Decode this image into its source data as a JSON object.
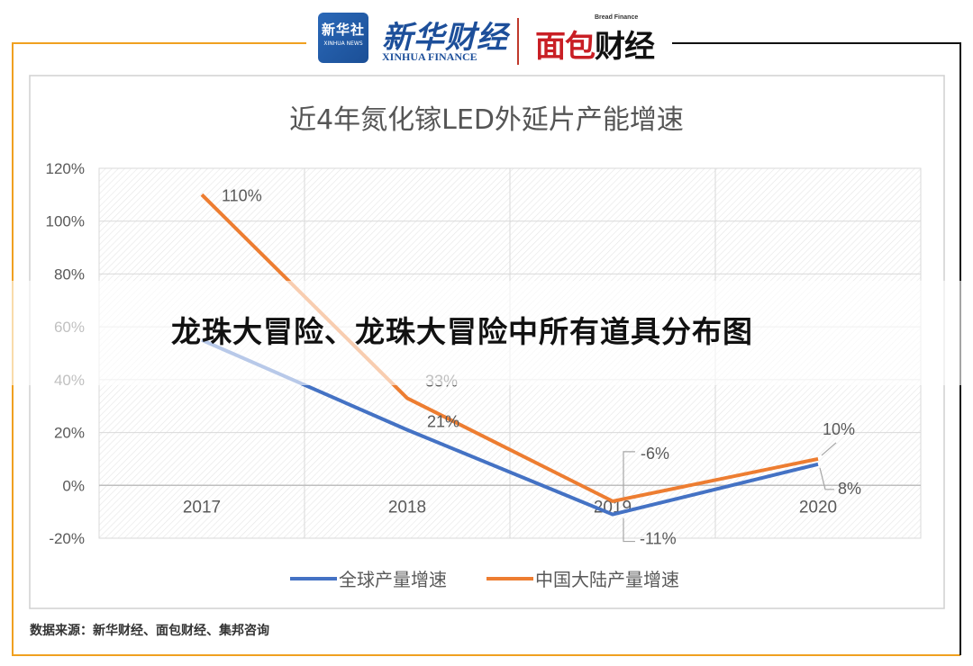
{
  "header": {
    "logo_cn": "新华社",
    "logo_en": "XINHUA NEWS",
    "brand_cn": "新华财经",
    "brand_en": "XINHUA FINANCE",
    "brand2_small": "Bread Finance",
    "brand2_part1": "面包",
    "brand2_part2": "财经"
  },
  "overlay_title": "龙珠大冒险、龙珠大冒险中所有道具分布图",
  "source": "数据来源：新华财经、面包财经、集邦咨询",
  "colors": {
    "series1": "#4472c4",
    "series2": "#ed7d31",
    "frame": "#f0a020"
  },
  "chart_data": {
    "type": "line",
    "title": "近4年氮化镓LED外延片产能增速",
    "categories": [
      "2017",
      "2018",
      "2019",
      "2020"
    ],
    "ylim": [
      -20,
      120
    ],
    "yticks": [
      "-20%",
      "0%",
      "20%",
      "40%",
      "60%",
      "80%",
      "100%",
      "120%"
    ],
    "grid": true,
    "legend_position": "bottom",
    "series": [
      {
        "name": "全球产量增速",
        "values": [
          55,
          21,
          -11,
          8
        ],
        "labels": [
          "",
          "21%",
          "-11%",
          "8%"
        ]
      },
      {
        "name": "中国大陆产量增速",
        "values": [
          110,
          33,
          -6,
          10
        ],
        "labels": [
          "110%",
          "33%",
          "-6%",
          "10%"
        ]
      }
    ]
  }
}
